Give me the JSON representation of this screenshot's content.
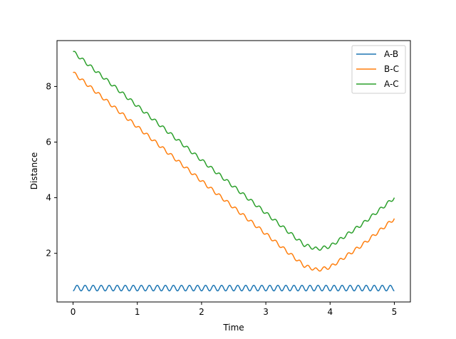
{
  "chart_data": {
    "type": "line",
    "title": "",
    "xlabel": "Time",
    "ylabel": "Distance",
    "xlim": [
      -0.25,
      5.25
    ],
    "ylim": [
      0.25,
      9.65
    ],
    "xticks": [
      0,
      1,
      2,
      3,
      4,
      5
    ],
    "yticks": [
      2,
      4,
      6,
      8
    ],
    "grid": false,
    "legend_position": "top-right",
    "series": [
      {
        "name": "A-B",
        "color": "#1f77b4",
        "shape": "oscillation",
        "baseline": 0.75,
        "amplitude": 0.1,
        "period": 0.125,
        "x_range": [
          0,
          5
        ]
      },
      {
        "name": "B-C",
        "color": "#ff7f0e",
        "shape": "trend-with-ripple",
        "trend_points": [
          [
            0,
            8.5
          ],
          [
            1,
            6.55
          ],
          [
            2,
            4.6
          ],
          [
            3,
            2.7
          ],
          [
            3.6,
            1.55
          ],
          [
            3.8,
            1.4
          ],
          [
            4.0,
            1.5
          ],
          [
            4.5,
            2.3
          ],
          [
            5,
            3.25
          ]
        ],
        "ripple_amplitude": 0.06,
        "ripple_period": 0.125
      },
      {
        "name": "A-C",
        "color": "#2ca02c",
        "shape": "trend-with-ripple",
        "trend_points": [
          [
            0,
            9.25
          ],
          [
            1,
            7.3
          ],
          [
            2,
            5.35
          ],
          [
            3,
            3.45
          ],
          [
            3.6,
            2.3
          ],
          [
            3.8,
            2.15
          ],
          [
            4.0,
            2.25
          ],
          [
            4.5,
            3.05
          ],
          [
            5,
            4.0
          ]
        ],
        "ripple_amplitude": 0.06,
        "ripple_period": 0.125
      }
    ]
  }
}
